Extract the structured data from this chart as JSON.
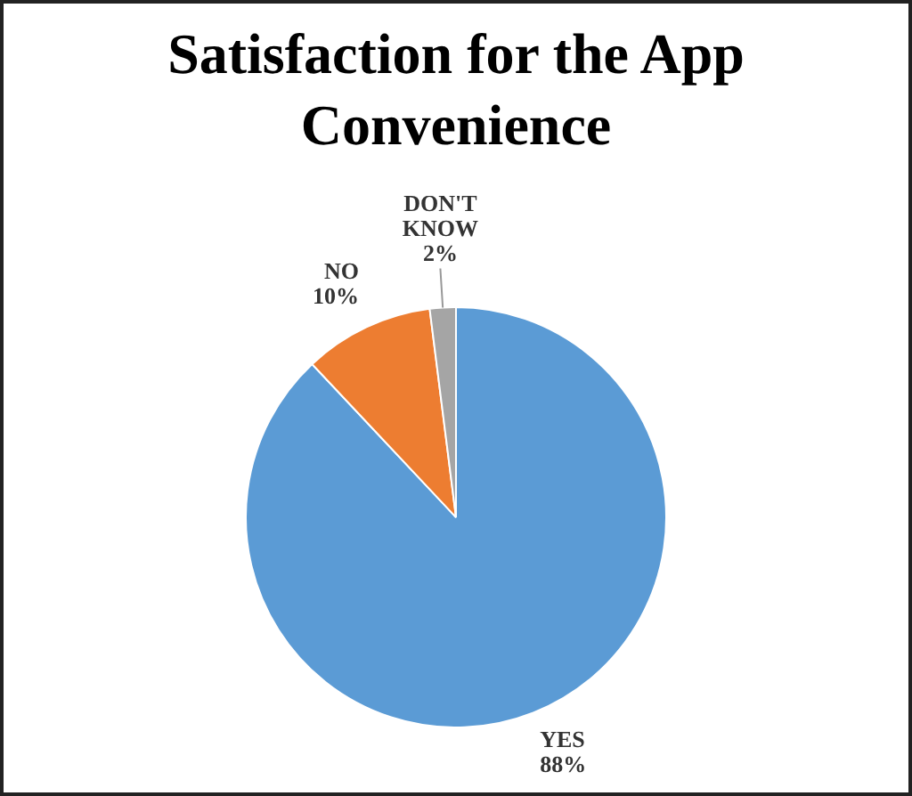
{
  "chart_data": {
    "type": "pie",
    "title": "Satisfaction for the App Convenience",
    "categories": [
      "YES",
      "NO",
      "DON'T KNOW"
    ],
    "values": [
      88,
      10,
      2
    ],
    "colors": [
      "#5b9bd5",
      "#ed7d31",
      "#a5a5a5"
    ],
    "value_labels": [
      "88%",
      "10%",
      "2%"
    ],
    "legend": false
  }
}
